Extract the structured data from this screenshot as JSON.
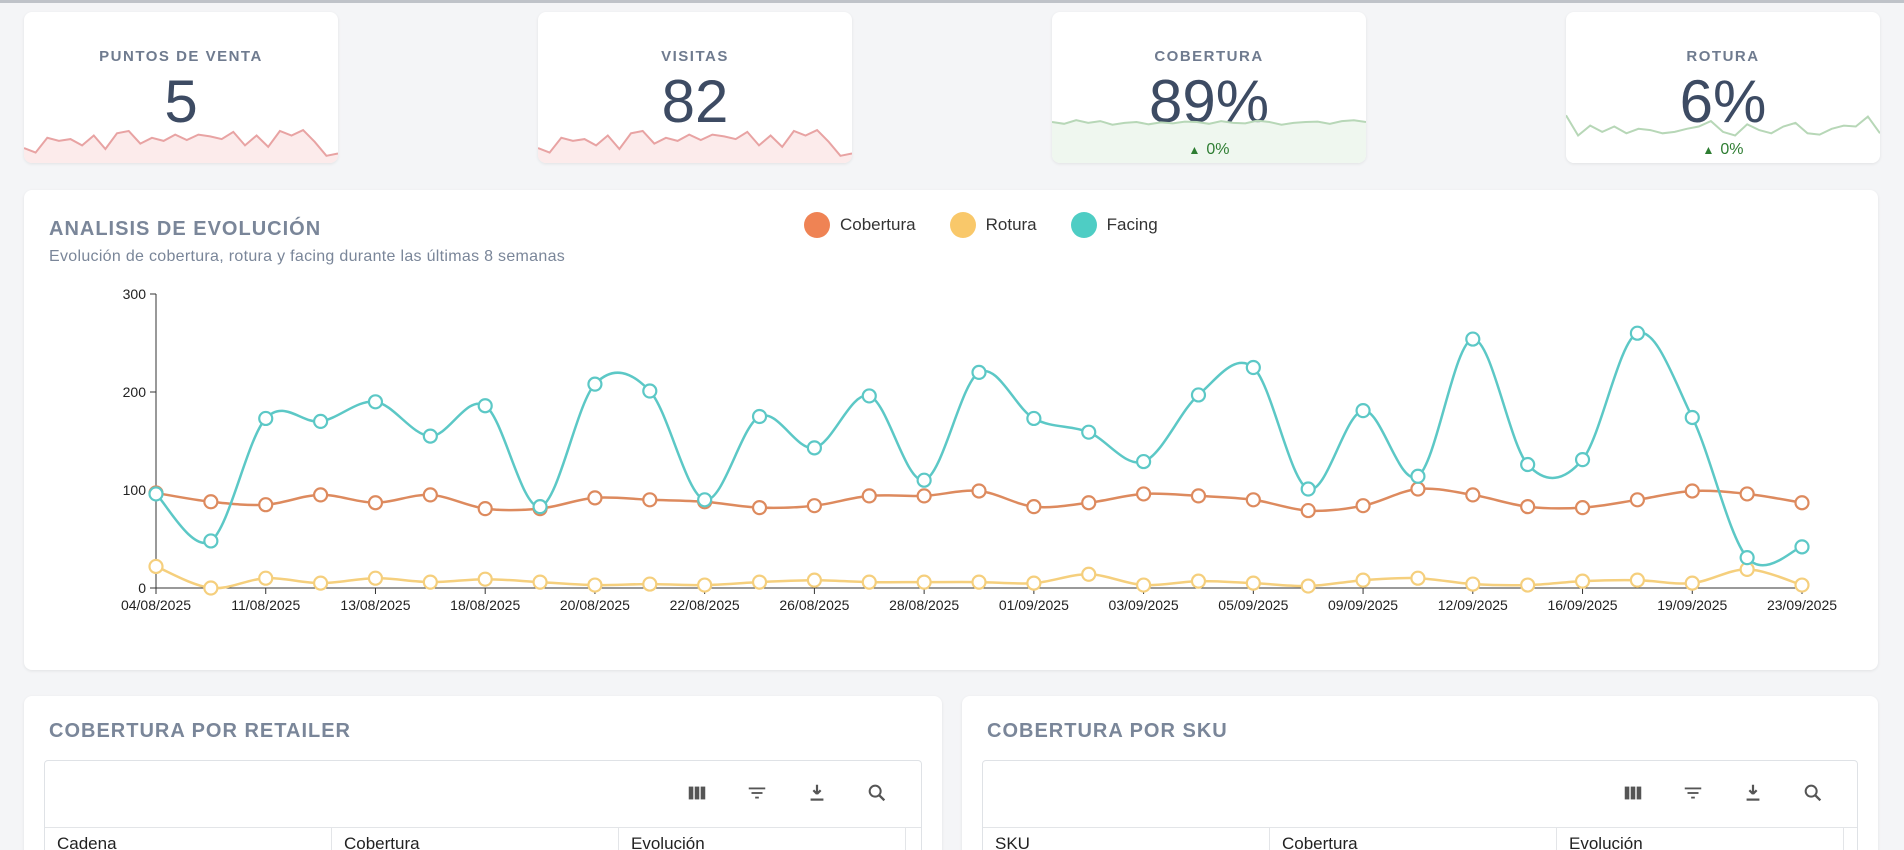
{
  "kpis": [
    {
      "label": "PUNTOS DE VENTA",
      "value": "5",
      "delta": "",
      "trend_color": "#e8a3a3",
      "fill_color": "#fbe3e3"
    },
    {
      "label": "VISITAS",
      "value": "82",
      "delta": "",
      "trend_color": "#e8a3a3",
      "fill_color": "#fbe3e3"
    },
    {
      "label": "COBERTURA",
      "value": "89%",
      "delta": "0%",
      "trend_color": "#b7d7b7",
      "fill_color": "#e8f4e8"
    },
    {
      "label": "ROTURA",
      "value": "6%",
      "delta": "0%",
      "trend_color": "#b7d7b7",
      "fill_color": "#ffffff"
    }
  ],
  "evolution": {
    "title": "ANALISIS DE EVOLUCIÓN",
    "subtitle": "Evolución de cobertura, rotura y facing durante las últimas 8 semanas",
    "legend": [
      {
        "name": "Cobertura",
        "color": "#ef8354"
      },
      {
        "name": "Rotura",
        "color": "#f9c86a"
      },
      {
        "name": "Facing",
        "color": "#4ecdc4"
      }
    ]
  },
  "chart_data": {
    "type": "line",
    "x": [
      "04/08/2025",
      "",
      "11/08/2025",
      "",
      "13/08/2025",
      "",
      "18/08/2025",
      "",
      "20/08/2025",
      "",
      "22/08/2025",
      "",
      "26/08/2025",
      "",
      "28/08/2025",
      "",
      "01/09/2025",
      "",
      "03/09/2025",
      "",
      "05/09/2025",
      "",
      "09/09/2025",
      "",
      "12/09/2025",
      "",
      "16/09/2025",
      "",
      "19/09/2025",
      "",
      "23/09/2025"
    ],
    "xticks": [
      "04/08/2025",
      "11/08/2025",
      "13/08/2025",
      "18/08/2025",
      "20/08/2025",
      "22/08/2025",
      "26/08/2025",
      "28/08/2025",
      "01/09/2025",
      "03/09/2025",
      "05/09/2025",
      "09/09/2025",
      "12/09/2025",
      "16/09/2025",
      "19/09/2025",
      "23/09/2025"
    ],
    "ylim": [
      0,
      300
    ],
    "yticks": [
      0,
      100,
      200,
      300
    ],
    "series": [
      {
        "name": "Cobertura",
        "color": "#dd8a5e",
        "values": [
          97,
          88,
          85,
          95,
          87,
          95,
          81,
          81,
          92,
          90,
          88,
          82,
          84,
          94,
          94,
          99,
          83,
          87,
          96,
          94,
          90,
          79,
          84,
          101,
          95,
          83,
          82,
          90,
          99,
          96,
          87
        ]
      },
      {
        "name": "Rotura",
        "color": "#f5cf7d",
        "values": [
          22,
          0,
          10,
          5,
          10,
          6,
          9,
          6,
          3,
          4,
          3,
          6,
          8,
          6,
          6,
          6,
          5,
          14,
          3,
          7,
          5,
          2,
          8,
          10,
          4,
          3,
          7,
          8,
          5,
          19,
          3
        ]
      },
      {
        "name": "Facing",
        "color": "#5cc8c6",
        "values": [
          96,
          48,
          173,
          170,
          190,
          155,
          186,
          83,
          208,
          201,
          90,
          175,
          143,
          196,
          110,
          220,
          173,
          159,
          129,
          197,
          225,
          101,
          181,
          114,
          254,
          126,
          131,
          260,
          174,
          31,
          42
        ]
      }
    ]
  },
  "tables": [
    {
      "title": "COBERTURA POR RETAILER",
      "columns": [
        "Cadena",
        "Cobertura",
        "Evolución"
      ]
    },
    {
      "title": "COBERTURA POR SKU",
      "columns": [
        "SKU",
        "Cobertura",
        "Evolución"
      ]
    }
  ],
  "toolbar_icons": [
    "columns-icon",
    "filter-icon",
    "download-icon",
    "search-icon"
  ]
}
